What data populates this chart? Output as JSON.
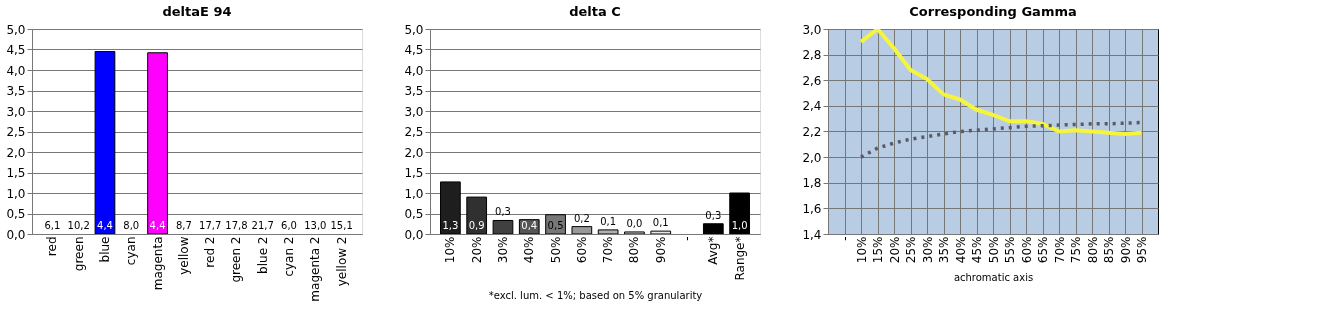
{
  "chart_data": [
    {
      "type": "bar",
      "title": "deltaE 94",
      "categories": [
        "red",
        "green",
        "blue",
        "cyan",
        "magenta",
        "yellow",
        "red 2",
        "green 2",
        "blue 2",
        "cyan 2",
        "magenta 2",
        "yellow 2"
      ],
      "values": [
        null,
        null,
        4.45,
        null,
        4.42,
        null,
        null,
        null,
        null,
        null,
        null,
        null
      ],
      "value_labels": [
        "6,1",
        "10,2",
        "4,4",
        "8,0",
        "4,4",
        "8,7",
        "17,7",
        "17,8",
        "21,7",
        "6,0",
        "13,0",
        "15,1"
      ],
      "colors": [
        "#ff0000",
        "#00ff00",
        "#0000ff",
        "#00ffff",
        "#ff00ff",
        "#ffff00",
        "#a85050",
        "#58a858",
        "#5050a8",
        "#50a8a8",
        "#a850a8",
        "#a8a858"
      ],
      "ylim": [
        0,
        5
      ],
      "yticks": [
        {
          "value": 0,
          "label": "0,0"
        },
        {
          "value": 0.5,
          "label": "0,5"
        },
        {
          "value": 1,
          "label": "1,0"
        },
        {
          "value": 1.5,
          "label": "1,5"
        },
        {
          "value": 2,
          "label": "2,0"
        },
        {
          "value": 2.5,
          "label": "2,5"
        },
        {
          "value": 3,
          "label": "3,0"
        },
        {
          "value": 3.5,
          "label": "3,5"
        },
        {
          "value": 4,
          "label": "4,0"
        },
        {
          "value": 4.5,
          "label": "4,5"
        },
        {
          "value": 5,
          "label": "5,0"
        }
      ],
      "grid": "y"
    },
    {
      "type": "bar",
      "title": "delta C",
      "categories": [
        "10%",
        "20%",
        "30%",
        "40%",
        "50%",
        "60%",
        "70%",
        "80%",
        "90%",
        "-",
        "Avg*",
        "Range*"
      ],
      "values": [
        1.27,
        0.9,
        0.33,
        0.35,
        0.47,
        0.18,
        0.1,
        0.05,
        0.07,
        null,
        0.25,
        1.0
      ],
      "value_labels": [
        "1,3",
        "0,9",
        "0,3",
        "0,4",
        "0,5",
        "0,2",
        "0,1",
        "0,0",
        "0,1",
        null,
        "0,3",
        "1,0"
      ],
      "colors": [
        "#1e1e1e",
        "#303030",
        "#404040",
        "#555555",
        "#777777",
        "#999999",
        "#b0b0b0",
        "#cccccc",
        "#e8e8e8",
        "#ffffff",
        "#000000",
        "#000000"
      ],
      "ylim": [
        0,
        5
      ],
      "yticks": [
        {
          "value": 0,
          "label": "0,0"
        },
        {
          "value": 0.5,
          "label": "0,5"
        },
        {
          "value": 1,
          "label": "1,0"
        },
        {
          "value": 1.5,
          "label": "1,5"
        },
        {
          "value": 2,
          "label": "2,0"
        },
        {
          "value": 2.5,
          "label": "2,5"
        },
        {
          "value": 3,
          "label": "3,0"
        },
        {
          "value": 3.5,
          "label": "3,5"
        },
        {
          "value": 4,
          "label": "4,0"
        },
        {
          "value": 4.5,
          "label": "4,5"
        },
        {
          "value": 5,
          "label": "5,0"
        }
      ],
      "grid": "y",
      "annotations": [
        "*excl. lum. < 1%; based on 5% granularity"
      ]
    },
    {
      "type": "line",
      "title": "Corresponding Gamma",
      "xlabel": "achromatic axis",
      "categories": [
        "-",
        "10%",
        "15%",
        "20%",
        "25%",
        "30%",
        "35%",
        "40%",
        "45%",
        "50%",
        "55%",
        "60%",
        "65%",
        "70%",
        "75%",
        "80%",
        "85%",
        "90%",
        "95%"
      ],
      "series": [
        {
          "color": "#f5f53c",
          "line_style": "solid",
          "values": [
            null,
            2.9,
            3.0,
            2.85,
            2.68,
            2.61,
            2.49,
            2.45,
            2.37,
            2.33,
            2.28,
            2.28,
            2.26,
            2.2,
            2.21,
            2.2,
            2.19,
            2.18,
            2.19
          ]
        },
        {
          "color": "#5a5a64",
          "line_style": "dotted",
          "values": [
            null,
            2.0,
            2.07,
            2.11,
            2.14,
            2.16,
            2.18,
            2.2,
            2.21,
            2.22,
            2.23,
            2.24,
            2.245,
            2.25,
            2.255,
            2.26,
            2.26,
            2.265,
            2.27
          ]
        }
      ],
      "ylim": [
        1.4,
        3.0
      ],
      "yticks": [
        {
          "value": 1.4,
          "label": "1,4"
        },
        {
          "value": 1.6,
          "label": "1,6"
        },
        {
          "value": 1.8,
          "label": "1,8"
        },
        {
          "value": 2.0,
          "label": "2,0"
        },
        {
          "value": 2.2,
          "label": "2,2"
        },
        {
          "value": 2.4,
          "label": "2,4"
        },
        {
          "value": 2.6,
          "label": "2,6"
        },
        {
          "value": 2.8,
          "label": "2,8"
        },
        {
          "value": 3.0,
          "label": "3,0"
        }
      ],
      "grid": true,
      "marker": "none"
    }
  ]
}
